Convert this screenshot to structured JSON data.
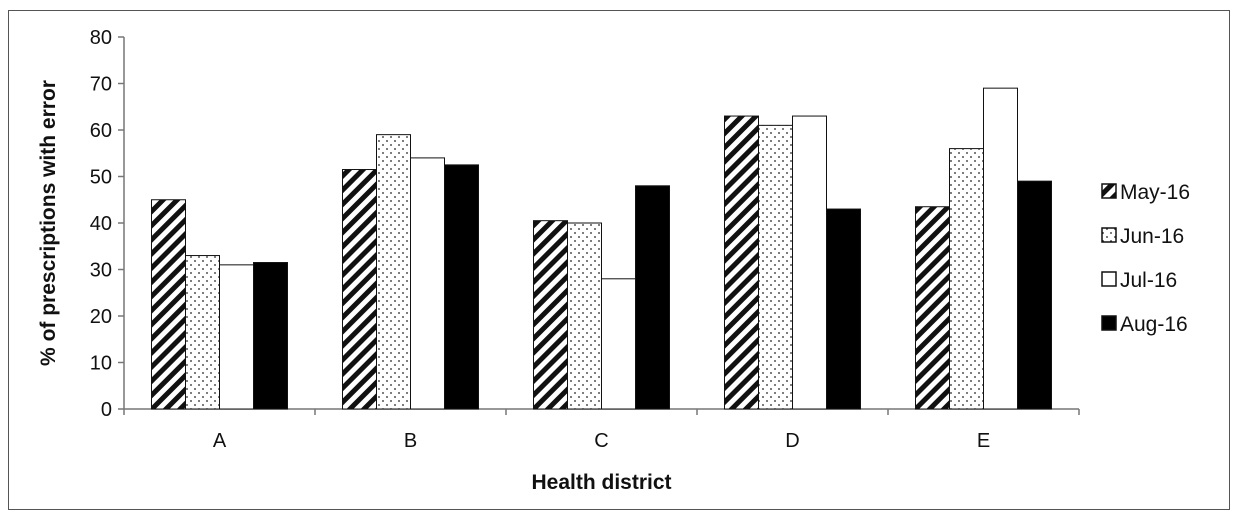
{
  "chart_data": {
    "type": "bar",
    "categories": [
      "A",
      "B",
      "C",
      "D",
      "E"
    ],
    "series": [
      {
        "name": "May-16",
        "values": [
          45,
          51.5,
          40.5,
          63,
          43.5
        ],
        "pattern": "hatch"
      },
      {
        "name": "Jun-16",
        "values": [
          33,
          59,
          40,
          61,
          56
        ],
        "pattern": "dots"
      },
      {
        "name": "Jul-16",
        "values": [
          31,
          54,
          28,
          63,
          69
        ],
        "pattern": "white"
      },
      {
        "name": "Aug-16",
        "values": [
          31.5,
          52.5,
          48,
          43,
          49
        ],
        "pattern": "black"
      }
    ],
    "xlabel": "Health district",
    "ylabel": "% of prescriptions with error",
    "ylim": [
      0,
      80
    ],
    "yticks": [
      0,
      10,
      20,
      30,
      40,
      50,
      60,
      70,
      80
    ],
    "grid": false,
    "legend_position": "right"
  }
}
